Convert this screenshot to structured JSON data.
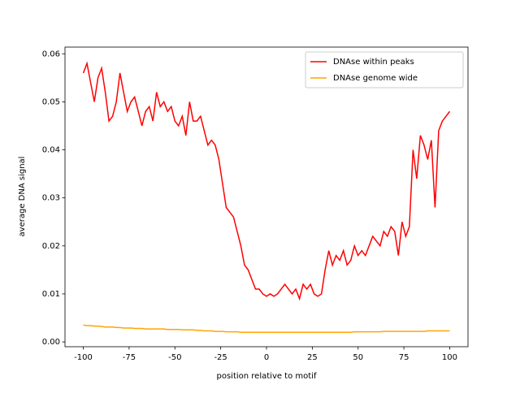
{
  "chart_data": {
    "type": "line",
    "xlabel": "position relative to motif",
    "ylabel": "average DNA signal",
    "x": [
      -100,
      -98,
      -96,
      -94,
      -92,
      -90,
      -88,
      -86,
      -84,
      -82,
      -80,
      -78,
      -76,
      -74,
      -72,
      -70,
      -68,
      -66,
      -64,
      -62,
      -60,
      -58,
      -56,
      -54,
      -52,
      -50,
      -48,
      -46,
      -44,
      -42,
      -40,
      -38,
      -36,
      -34,
      -32,
      -30,
      -28,
      -26,
      -24,
      -22,
      -20,
      -18,
      -16,
      -14,
      -12,
      -10,
      -8,
      -6,
      -4,
      -2,
      0,
      2,
      4,
      6,
      8,
      10,
      12,
      14,
      16,
      18,
      20,
      22,
      24,
      26,
      28,
      30,
      32,
      34,
      36,
      38,
      40,
      42,
      44,
      46,
      48,
      50,
      52,
      54,
      56,
      58,
      60,
      62,
      64,
      66,
      68,
      70,
      72,
      74,
      76,
      78,
      80,
      82,
      84,
      86,
      88,
      90,
      92,
      94,
      96,
      98,
      100
    ],
    "series": [
      {
        "name": "DNAse within peaks",
        "color": "#ff0000",
        "values": [
          0.056,
          0.058,
          0.054,
          0.05,
          0.055,
          0.057,
          0.052,
          0.046,
          0.047,
          0.05,
          0.056,
          0.052,
          0.048,
          0.05,
          0.051,
          0.048,
          0.045,
          0.048,
          0.049,
          0.046,
          0.052,
          0.049,
          0.05,
          0.048,
          0.049,
          0.046,
          0.045,
          0.047,
          0.043,
          0.05,
          0.046,
          0.046,
          0.047,
          0.044,
          0.041,
          0.042,
          0.041,
          0.038,
          0.033,
          0.028,
          0.027,
          0.026,
          0.023,
          0.02,
          0.016,
          0.015,
          0.013,
          0.011,
          0.011,
          0.01,
          0.0095,
          0.01,
          0.0095,
          0.01,
          0.011,
          0.012,
          0.011,
          0.01,
          0.011,
          0.009,
          0.012,
          0.011,
          0.012,
          0.01,
          0.0095,
          0.01,
          0.015,
          0.019,
          0.016,
          0.018,
          0.017,
          0.019,
          0.016,
          0.017,
          0.02,
          0.018,
          0.019,
          0.018,
          0.02,
          0.022,
          0.021,
          0.02,
          0.023,
          0.022,
          0.024,
          0.023,
          0.018,
          0.025,
          0.022,
          0.024,
          0.04,
          0.034,
          0.043,
          0.041,
          0.038,
          0.042,
          0.028,
          0.044,
          0.046,
          0.047,
          0.048
        ]
      },
      {
        "name": "DNAse genome wide",
        "color": "#ffa500",
        "values": [
          0.0035,
          0.0034,
          0.0034,
          0.0033,
          0.0033,
          0.0032,
          0.0031,
          0.0031,
          0.0031,
          0.003,
          0.003,
          0.0029,
          0.0029,
          0.0029,
          0.0028,
          0.0028,
          0.0028,
          0.0027,
          0.0027,
          0.0027,
          0.0027,
          0.0027,
          0.0027,
          0.0026,
          0.0026,
          0.0026,
          0.0026,
          0.0025,
          0.0025,
          0.0025,
          0.0025,
          0.0024,
          0.0024,
          0.0023,
          0.0023,
          0.0023,
          0.0022,
          0.0022,
          0.0022,
          0.0021,
          0.0021,
          0.0021,
          0.0021,
          0.002,
          0.002,
          0.002,
          0.002,
          0.002,
          0.002,
          0.002,
          0.002,
          0.002,
          0.002,
          0.002,
          0.002,
          0.002,
          0.002,
          0.002,
          0.002,
          0.002,
          0.002,
          0.002,
          0.002,
          0.002,
          0.002,
          0.002,
          0.002,
          0.002,
          0.002,
          0.002,
          0.002,
          0.002,
          0.002,
          0.002,
          0.0021,
          0.0021,
          0.0021,
          0.0021,
          0.0021,
          0.0021,
          0.0021,
          0.0021,
          0.0022,
          0.0022,
          0.0022,
          0.0022,
          0.0022,
          0.0022,
          0.0022,
          0.0022,
          0.0022,
          0.0022,
          0.0022,
          0.0022,
          0.0023,
          0.0023,
          0.0023,
          0.0023,
          0.0023,
          0.0023,
          0.0023
        ]
      }
    ],
    "xlim": [
      -110,
      110
    ],
    "xticks": [
      -100,
      -75,
      -50,
      -25,
      0,
      25,
      50,
      75,
      100
    ],
    "ylim": [
      -0.001,
      0.0614
    ],
    "yticks": [
      {
        "value": 0,
        "label": "0.00"
      },
      0.01,
      0.02,
      0.03,
      0.04,
      0.05,
      0.06
    ],
    "legend": "upper right"
  }
}
